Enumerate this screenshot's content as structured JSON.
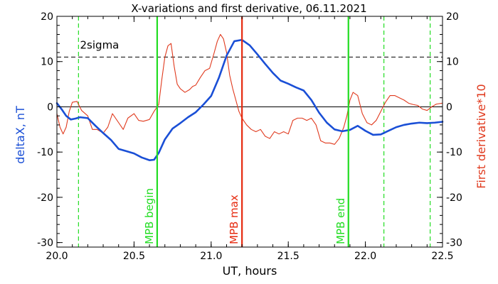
{
  "chart_data": {
    "type": "line",
    "title": "X-variations and first derivative, 06.11.2021",
    "xlabel": "UT, hours",
    "ylabel_left": "deltaX, nT",
    "ylabel_right": "First derivative*10",
    "xlim": [
      20.0,
      22.5
    ],
    "ylim": [
      -31,
      20
    ],
    "x_ticks": [
      20.0,
      20.5,
      21.0,
      21.5,
      22.0,
      22.5
    ],
    "x_tick_labels": [
      "20.0",
      "20.5",
      "21.0",
      "21.5",
      "22.0",
      "22.5"
    ],
    "y_ticks": [
      20,
      10,
      0,
      -10,
      -20,
      -30
    ],
    "y_tick_labels": [
      "20",
      "10",
      "0",
      "-10",
      "-20",
      "-30"
    ],
    "grid": false,
    "colors": {
      "deltaX": "#1a4fd6",
      "derivative": "#e03a1e",
      "mpb_boundary": "#22dd22",
      "mpb_max": "#e62a0f",
      "sigma": "#000000",
      "zero": "#000000"
    },
    "reference_lines": {
      "zero": 0,
      "sigma_level": 11,
      "sigma_label": "2sigma"
    },
    "markers": [
      {
        "label": "MPB begin",
        "x": 20.65,
        "color": "#22dd22"
      },
      {
        "label": "MPB max",
        "x": 21.2,
        "color": "#e62a0f"
      },
      {
        "label": "MPB end",
        "x": 21.89,
        "color": "#22dd22"
      }
    ],
    "dashed_markers": [
      20.14,
      22.12,
      22.42
    ],
    "series": [
      {
        "key": "deltaX",
        "axis": "left",
        "x": [
          20.0,
          20.03,
          20.06,
          20.09,
          20.12,
          20.15,
          20.2,
          20.25,
          20.3,
          20.35,
          20.4,
          20.45,
          20.5,
          20.55,
          20.6,
          20.63,
          20.66,
          20.7,
          20.75,
          20.8,
          20.85,
          20.9,
          20.95,
          21.0,
          21.05,
          21.1,
          21.15,
          21.2,
          21.25,
          21.3,
          21.35,
          21.4,
          21.45,
          21.5,
          21.55,
          21.6,
          21.65,
          21.7,
          21.75,
          21.8,
          21.85,
          21.9,
          21.95,
          22.0,
          22.05,
          22.1,
          22.15,
          22.2,
          22.25,
          22.3,
          22.35,
          22.4,
          22.45,
          22.5
        ],
        "y": [
          0.8,
          -0.5,
          -2.0,
          -2.8,
          -2.6,
          -2.3,
          -2.5,
          -4.2,
          -5.8,
          -7.3,
          -9.3,
          -9.8,
          -10.3,
          -11.2,
          -11.8,
          -11.7,
          -10.2,
          -7.2,
          -4.8,
          -3.6,
          -2.3,
          -1.2,
          0.5,
          2.4,
          6.4,
          11.3,
          14.5,
          14.8,
          13.6,
          11.6,
          9.5,
          7.5,
          5.8,
          5.1,
          4.3,
          3.6,
          1.5,
          -1.3,
          -3.5,
          -5.0,
          -5.4,
          -5.1,
          -4.2,
          -5.3,
          -6.2,
          -6.1,
          -5.3,
          -4.5,
          -4.0,
          -3.7,
          -3.5,
          -3.6,
          -3.5,
          -3.3
        ]
      },
      {
        "key": "derivative",
        "axis": "left",
        "x": [
          20.0,
          20.02,
          20.04,
          20.06,
          20.08,
          20.1,
          20.13,
          20.16,
          20.2,
          20.23,
          20.26,
          20.3,
          20.33,
          20.36,
          20.4,
          20.43,
          20.46,
          20.5,
          20.53,
          20.56,
          20.6,
          20.63,
          20.66,
          20.68,
          20.7,
          20.72,
          20.74,
          20.76,
          20.78,
          20.8,
          20.83,
          20.86,
          20.88,
          20.9,
          20.93,
          20.96,
          20.99,
          21.02,
          21.04,
          21.06,
          21.08,
          21.1,
          21.12,
          21.14,
          21.16,
          21.18,
          21.2,
          21.23,
          21.26,
          21.29,
          21.32,
          21.35,
          21.38,
          21.41,
          21.44,
          21.47,
          21.5,
          21.53,
          21.56,
          21.59,
          21.62,
          21.65,
          21.68,
          21.71,
          21.74,
          21.77,
          21.8,
          21.83,
          21.86,
          21.88,
          21.9,
          21.92,
          21.95,
          21.98,
          22.01,
          22.04,
          22.07,
          22.1,
          22.13,
          22.16,
          22.19,
          22.22,
          22.25,
          22.28,
          22.31,
          22.34,
          22.37,
          22.4,
          22.43,
          22.46,
          22.5
        ],
        "y": [
          -1.5,
          -4.5,
          -6.0,
          -4.5,
          -1.0,
          1.0,
          1.2,
          -0.8,
          -2.0,
          -5.0,
          -5.0,
          -5.8,
          -4.5,
          -1.5,
          -3.5,
          -5.0,
          -2.5,
          -1.5,
          -3.0,
          -3.2,
          -2.8,
          -1.0,
          0.5,
          6.0,
          11.0,
          13.5,
          14.0,
          9.0,
          5.0,
          4.0,
          3.2,
          3.8,
          4.5,
          4.8,
          6.5,
          8.0,
          8.5,
          12.0,
          14.5,
          16.0,
          15.0,
          12.0,
          7.0,
          4.0,
          1.5,
          -1.0,
          -2.5,
          -4.0,
          -5.0,
          -5.5,
          -5.0,
          -6.5,
          -7.0,
          -5.5,
          -6.0,
          -5.5,
          -6.0,
          -3.0,
          -2.5,
          -2.5,
          -3.0,
          -2.5,
          -4.0,
          -7.5,
          -8.0,
          -8.0,
          -8.3,
          -7.0,
          -4.5,
          -2.0,
          1.5,
          3.2,
          2.5,
          -1.5,
          -3.5,
          -4.0,
          -3.0,
          -1.0,
          1.0,
          2.5,
          2.5,
          2.0,
          1.5,
          0.8,
          0.5,
          0.3,
          -0.5,
          -0.8,
          0.0,
          0.6,
          0.8
        ]
      }
    ]
  }
}
